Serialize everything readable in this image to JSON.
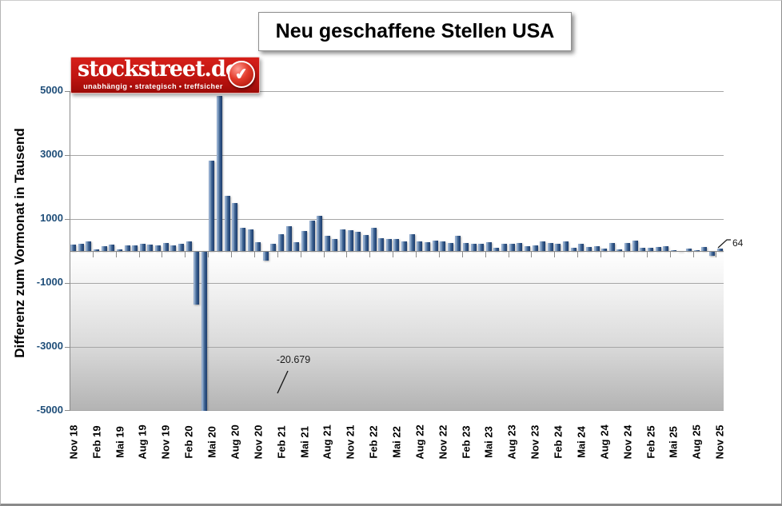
{
  "page": {
    "title": "Neu geschaffene Stellen USA"
  },
  "logo": {
    "brand": "stockstreet.de",
    "tagline": "unabhängig • strategisch • treffsicher",
    "check_icon": "✔",
    "bg_color": "#c01410"
  },
  "chart_data": {
    "type": "bar",
    "title": "Neu geschaffene Stellen USA",
    "xlabel": "",
    "ylabel": "Differenz zum Vormonat in Tausend",
    "ylim": [
      -5000,
      5000
    ],
    "grid": true,
    "legend": null,
    "bar_color": "#2e5287",
    "axis_label_color": "#1f4e79",
    "y_ticks": [
      5000,
      3000,
      1000,
      -1000,
      -3000,
      -5000
    ],
    "x_tick_labels": [
      "Nov 18",
      "Feb 19",
      "Mai 19",
      "Aug 19",
      "Nov 19",
      "Feb 20",
      "Mai 20",
      "Aug 20",
      "Nov 20",
      "Feb 21",
      "Mai 21",
      "Aug 21",
      "Nov 21",
      "Feb 22",
      "Mai 22",
      "Aug 22",
      "Nov 22",
      "Feb 23",
      "Mai 23",
      "Aug 23",
      "Nov 23",
      "Feb 24",
      "Mai 24",
      "Aug 24",
      "Nov 24",
      "Feb 25",
      "Mai 25",
      "Aug 25",
      "Nov 25"
    ],
    "x": [
      "Nov 18",
      "Dez 18",
      "Jan 19",
      "Feb 19",
      "Mär 19",
      "Apr 19",
      "Mai 19",
      "Jun 19",
      "Jul 19",
      "Aug 19",
      "Sep 19",
      "Okt 19",
      "Nov 19",
      "Dez 19",
      "Jan 20",
      "Feb 20",
      "Mär 20",
      "Apr 20",
      "Mai 20",
      "Jun 20",
      "Jul 20",
      "Aug 20",
      "Sep 20",
      "Okt 20",
      "Nov 20",
      "Dez 20",
      "Jan 21",
      "Feb 21",
      "Mär 21",
      "Apr 21",
      "Mai 21",
      "Jun 21",
      "Jul 21",
      "Aug 21",
      "Sep 21",
      "Okt 21",
      "Nov 21",
      "Dez 21",
      "Jan 22",
      "Feb 22",
      "Mär 22",
      "Apr 22",
      "Mai 22",
      "Jun 22",
      "Jul 22",
      "Aug 22",
      "Sep 22",
      "Okt 22",
      "Nov 22",
      "Dez 22",
      "Jan 23",
      "Feb 23",
      "Mär 23",
      "Apr 23",
      "Mai 23",
      "Jun 23",
      "Jul 23",
      "Aug 23",
      "Sep 23",
      "Okt 23",
      "Nov 23",
      "Dez 23",
      "Jan 24",
      "Feb 24",
      "Mär 24",
      "Apr 24",
      "Mai 24",
      "Jun 24",
      "Jul 24",
      "Aug 24",
      "Sep 24",
      "Okt 24",
      "Nov 24",
      "Dez 24",
      "Jan 25",
      "Feb 25",
      "Mär 25",
      "Apr 25",
      "Mai 25",
      "Jun 25",
      "Jul 25",
      "Aug 25",
      "Sep 25",
      "Okt 25",
      "Nov 25"
    ],
    "values": [
      196,
      227,
      312,
      56,
      147,
      210,
      62,
      178,
      166,
      219,
      208,
      185,
      261,
      184,
      214,
      289,
      -1683,
      -20679,
      2833,
      4846,
      1726,
      1489,
      716,
      680,
      264,
      -306,
      233,
      536,
      785,
      269,
      614,
      962,
      1091,
      483,
      379,
      677,
      647,
      588,
      504,
      714,
      398,
      368,
      386,
      293,
      537,
      292,
      269,
      324,
      290,
      239,
      472,
      248,
      217,
      217,
      281,
      105,
      236,
      227,
      246,
      150,
      182,
      290,
      256,
      236,
      310,
      108,
      216,
      118,
      144,
      78,
      240,
      44,
      261,
      323,
      111,
      102,
      120,
      158,
      19,
      -13,
      79,
      22,
      119,
      -150,
      64
    ],
    "annotations": {
      "min_bar_label": "-20.679",
      "last_bar_label": "64"
    }
  }
}
